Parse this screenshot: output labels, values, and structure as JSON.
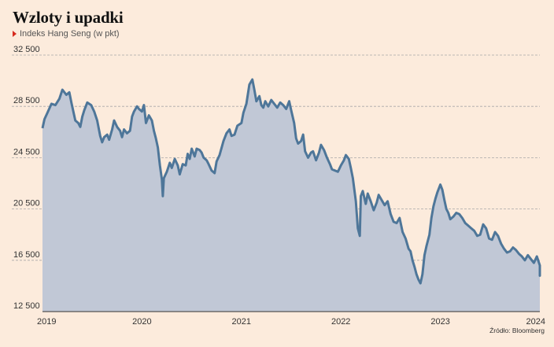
{
  "header": {
    "title": "Wzloty i upadki",
    "subtitle": "Indeks Hang Seng (w pkt)"
  },
  "source": "Źródło: Bloomberg",
  "colors": {
    "background": "#fcebdc",
    "line": "#4e7699",
    "area": "#c1c8d6",
    "grid": "#a8a8a8",
    "marker": "#d62a1e"
  },
  "chart_data": {
    "type": "area",
    "title": "Wzloty i upadki",
    "subtitle": "Indeks Hang Seng (w pkt)",
    "xlabel": "",
    "ylabel": "",
    "ylim": [
      12500,
      32500
    ],
    "xlim": [
      2019.0,
      2024.0
    ],
    "y_ticks": [
      12500,
      16500,
      20500,
      24500,
      28500,
      32500
    ],
    "y_tick_labels": [
      "12 500",
      "16 500",
      "20 500",
      "24 500",
      "28 500",
      "32 500"
    ],
    "x_ticks": [
      2019,
      2020,
      2021,
      2022,
      2023,
      2024
    ],
    "x_tick_labels": [
      "2019",
      "2020",
      "2021",
      "2022",
      "2023",
      "2024"
    ],
    "grid": "horizontal dashed",
    "series": [
      {
        "x": [
          2019.0,
          2019.02,
          2019.05,
          2019.09,
          2019.13,
          2019.17,
          2019.2,
          2019.24,
          2019.27,
          2019.29,
          2019.33,
          2019.36,
          2019.38,
          2019.4,
          2019.42,
          2019.45,
          2019.49,
          2019.52,
          2019.55,
          2019.58,
          2019.6,
          2019.62,
          2019.65,
          2019.67,
          2019.7,
          2019.72,
          2019.75,
          2019.78,
          2019.8,
          2019.82,
          2019.85,
          2019.88,
          2019.9,
          2019.92,
          2019.95,
          2019.97,
          2020.0,
          2020.02,
          2020.04,
          2020.07,
          2020.1,
          2020.12,
          2020.14,
          2020.16,
          2020.18,
          2020.2,
          2020.21,
          2020.22,
          2020.25,
          2020.28,
          2020.3,
          2020.33,
          2020.36,
          2020.38,
          2020.41,
          2020.44,
          2020.46,
          2020.48,
          2020.5,
          2020.53,
          2020.55,
          2020.58,
          2020.6,
          2020.62,
          2020.65,
          2020.67,
          2020.7,
          2020.73,
          2020.75,
          2020.78,
          2020.82,
          2020.85,
          2020.88,
          2020.9,
          2020.93,
          2020.96,
          2021.0,
          2021.02,
          2021.05,
          2021.08,
          2021.11,
          2021.13,
          2021.15,
          2021.18,
          2021.2,
          2021.22,
          2021.24,
          2021.27,
          2021.3,
          2021.33,
          2021.36,
          2021.39,
          2021.42,
          2021.45,
          2021.48,
          2021.5,
          2021.53,
          2021.55,
          2021.57,
          2021.6,
          2021.62,
          2021.64,
          2021.67,
          2021.7,
          2021.72,
          2021.75,
          2021.78,
          2021.8,
          2021.83,
          2021.86,
          2021.89,
          2021.91,
          2021.94,
          2021.97,
          2022.0,
          2022.03,
          2022.05,
          2022.08,
          2022.1,
          2022.12,
          2022.15,
          2022.17,
          2022.19,
          2022.2,
          2022.22,
          2022.25,
          2022.27,
          2022.3,
          2022.33,
          2022.36,
          2022.38,
          2022.41,
          2022.44,
          2022.47,
          2022.5,
          2022.53,
          2022.56,
          2022.59,
          2022.62,
          2022.65,
          2022.68,
          2022.7,
          2022.72,
          2022.74,
          2022.76,
          2022.78,
          2022.8,
          2022.82,
          2022.84,
          2022.86,
          2022.89,
          2022.91,
          2022.93,
          2022.95,
          2022.97,
          2023.0,
          2023.02,
          2023.04,
          2023.06,
          2023.08,
          2023.1,
          2023.13,
          2023.16,
          2023.19,
          2023.22,
          2023.25,
          2023.28,
          2023.31,
          2023.34,
          2023.37,
          2023.4,
          2023.43,
          2023.46,
          2023.49,
          2023.52,
          2023.55,
          2023.58,
          2023.61,
          2023.64,
          2023.67,
          2023.7,
          2023.73,
          2023.76,
          2023.79,
          2023.82,
          2023.85,
          2023.88,
          2023.91,
          2023.94,
          2023.97,
          2024.0,
          2024.02,
          2024.05
        ],
        "y": [
          26800,
          27500,
          28000,
          28700,
          28600,
          29100,
          29800,
          29400,
          29600,
          28800,
          27400,
          27200,
          26900,
          27700,
          28200,
          28800,
          28600,
          28100,
          27400,
          26200,
          25700,
          26100,
          26300,
          25900,
          26700,
          27400,
          26900,
          26600,
          26100,
          26700,
          26400,
          26600,
          27700,
          28100,
          28500,
          28300,
          28100,
          28600,
          27200,
          27800,
          27400,
          26600,
          26000,
          25300,
          23900,
          22800,
          21500,
          22900,
          23400,
          24100,
          23700,
          24400,
          23900,
          23200,
          24000,
          23900,
          24800,
          24400,
          25200,
          24600,
          25200,
          25100,
          24900,
          24500,
          24300,
          24000,
          23500,
          23300,
          24200,
          24700,
          25800,
          26400,
          26700,
          26200,
          26300,
          27000,
          27200,
          28000,
          28700,
          30200,
          30600,
          29800,
          28900,
          29300,
          28600,
          28400,
          28900,
          28500,
          29000,
          28700,
          28400,
          28800,
          28600,
          28300,
          28900,
          28200,
          27200,
          26000,
          25600,
          25800,
          26300,
          25000,
          24500,
          24900,
          25000,
          24300,
          24900,
          25500,
          25100,
          24500,
          24000,
          23600,
          23500,
          23400,
          23900,
          24300,
          24700,
          24400,
          23700,
          22900,
          21100,
          19000,
          18400,
          21500,
          21900,
          20900,
          21700,
          21100,
          20400,
          21000,
          21600,
          21200,
          20800,
          21100,
          20100,
          19500,
          19400,
          19800,
          18700,
          18200,
          17400,
          17200,
          16500,
          16000,
          15400,
          15000,
          14700,
          15400,
          16900,
          17600,
          18500,
          19800,
          20700,
          21300,
          21800,
          22400,
          22000,
          21200,
          20500,
          20200,
          19700,
          19900,
          20200,
          20100,
          19800,
          19400,
          19200,
          19000,
          18800,
          18400,
          18500,
          19300,
          19000,
          18200,
          18100,
          18700,
          18400,
          17800,
          17400,
          17100,
          17200,
          17500,
          17300,
          17000,
          16800,
          16500,
          16900,
          16600,
          16300,
          16800,
          16100,
          15300,
          15600
        ]
      }
    ]
  }
}
